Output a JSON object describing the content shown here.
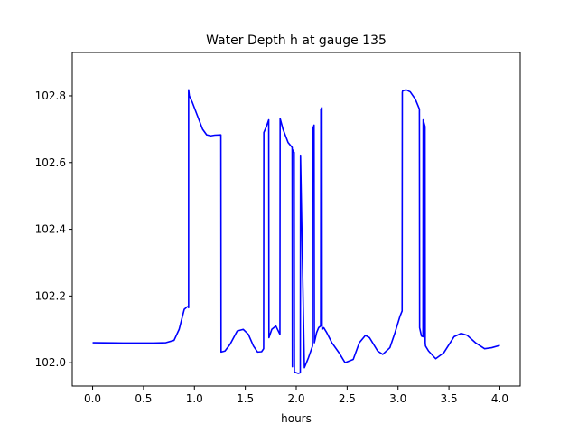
{
  "chart_data": {
    "type": "line",
    "title": "Water Depth h at gauge 135",
    "xlabel": "hours",
    "ylabel": "",
    "xlim": [
      -0.2,
      4.2
    ],
    "ylim": [
      101.93,
      102.93
    ],
    "xticks": [
      0.0,
      0.5,
      1.0,
      1.5,
      2.0,
      2.5,
      3.0,
      3.5,
      4.0
    ],
    "xtick_labels": [
      "0.0",
      "0.5",
      "1.0",
      "1.5",
      "2.0",
      "2.5",
      "3.0",
      "3.5",
      "4.0"
    ],
    "yticks": [
      102.0,
      102.2,
      102.4,
      102.6,
      102.8
    ],
    "ytick_labels": [
      "102.0",
      "102.2",
      "102.4",
      "102.6",
      "102.8"
    ],
    "grid": false,
    "series": [
      {
        "color": "#0000ff",
        "x": [
          0.0,
          0.3,
          0.6,
          0.72,
          0.8,
          0.85,
          0.9,
          0.93,
          0.94,
          0.943,
          0.943,
          0.95,
          0.98,
          1.03,
          1.08,
          1.12,
          1.16,
          1.2,
          1.26,
          1.262,
          1.3,
          1.35,
          1.42,
          1.48,
          1.53,
          1.58,
          1.62,
          1.66,
          1.68,
          1.682,
          1.71,
          1.73,
          1.732,
          1.76,
          1.8,
          1.84,
          1.842,
          1.87,
          1.92,
          1.96,
          1.962,
          1.965,
          1.98,
          1.982,
          2.02,
          2.04,
          2.042,
          2.08,
          2.12,
          2.16,
          2.162,
          2.175,
          2.178,
          2.2,
          2.22,
          2.24,
          2.242,
          2.252,
          2.254,
          2.27,
          2.3,
          2.35,
          2.42,
          2.48,
          2.56,
          2.62,
          2.68,
          2.72,
          2.8,
          2.85,
          2.92,
          2.97,
          3.02,
          3.04,
          3.042,
          3.045,
          3.08,
          3.12,
          3.17,
          3.21,
          3.212,
          3.23,
          3.245,
          3.247,
          3.265,
          3.267,
          3.27,
          3.3,
          3.37,
          3.45,
          3.55,
          3.62,
          3.68,
          3.76,
          3.85,
          3.92,
          4.0
        ],
        "values": [
          102.06,
          102.059,
          102.059,
          102.06,
          102.067,
          102.1,
          102.16,
          102.168,
          102.168,
          102.165,
          102.818,
          102.8,
          102.78,
          102.74,
          102.7,
          102.683,
          102.68,
          102.682,
          102.683,
          102.032,
          102.035,
          102.055,
          102.095,
          102.1,
          102.085,
          102.05,
          102.032,
          102.033,
          102.042,
          102.69,
          102.71,
          102.728,
          102.075,
          102.1,
          102.11,
          102.085,
          102.732,
          102.7,
          102.66,
          102.645,
          101.988,
          102.638,
          102.63,
          101.972,
          101.968,
          101.97,
          102.622,
          101.985,
          102.015,
          102.05,
          102.7,
          102.712,
          102.06,
          102.09,
          102.105,
          102.11,
          102.76,
          102.765,
          102.1,
          102.105,
          102.09,
          102.06,
          102.03,
          102.0,
          102.01,
          102.06,
          102.082,
          102.075,
          102.035,
          102.025,
          102.045,
          102.09,
          102.14,
          102.155,
          102.81,
          102.815,
          102.818,
          102.812,
          102.79,
          102.76,
          102.105,
          102.08,
          102.078,
          102.728,
          102.708,
          102.06,
          102.05,
          102.035,
          102.012,
          102.03,
          102.078,
          102.088,
          102.082,
          102.06,
          102.042,
          102.045,
          102.052
        ]
      }
    ]
  }
}
